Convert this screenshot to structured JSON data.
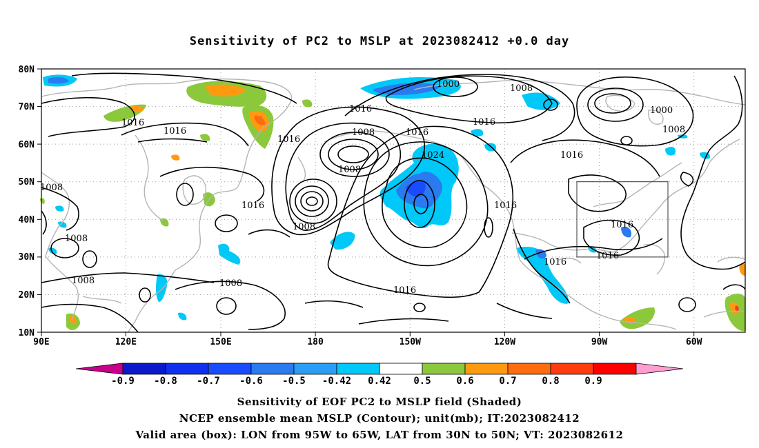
{
  "title": "Sensitivity of PC2 to MSLP at 2023082412 +0.0 day",
  "map": {
    "lon_ticks": [
      "90E",
      "120E",
      "150E",
      "180",
      "150W",
      "120W",
      "90W",
      "60W"
    ],
    "lat_ticks": [
      "80N",
      "70N",
      "60N",
      "50N",
      "40N",
      "30N",
      "20N",
      "10N"
    ],
    "extent": {
      "lon_west": "90E",
      "lon_east": "50W",
      "lat_south": "10N",
      "lat_north": "80N"
    },
    "contour_labels": [
      "1000",
      "1008",
      "1016",
      "1016",
      "1016",
      "1016",
      "1008",
      "1016",
      "1000",
      "1016",
      "1008",
      "1008",
      "1000",
      "1016",
      "1024",
      "1016",
      "1016",
      "1008",
      "1016",
      "1016",
      "1016",
      "1008",
      "1008",
      "1008",
      "1016"
    ],
    "valid_box": {
      "lon_from": "95W",
      "lon_to": "65W",
      "lat_from": "30N",
      "lat_to": "50N"
    }
  },
  "colorbar": {
    "labels": [
      "-0.9",
      "-0.8",
      "-0.7",
      "-0.6",
      "-0.5",
      "-0.42",
      "0.42",
      "0.5",
      "0.6",
      "0.7",
      "0.8",
      "0.9"
    ],
    "colors": [
      "#c8008c",
      "#0a1acb",
      "#1030f0",
      "#1a4cff",
      "#2a7af0",
      "#2a9ef5",
      "#00c8f8",
      "#ffffff",
      "#8cc83c",
      "#ff9a10",
      "#ff6c10",
      "#ff3c10",
      "#ff0000",
      "#ff9ed2"
    ]
  },
  "captions": {
    "line1": "Sensitivity of EOF PC2 to MSLP field (Shaded)",
    "line2": "NCEP ensemble mean MSLP (Contour); unit(mb); IT:2023082412",
    "line3": "Valid area (box): LON from 95W to 65W, LAT from 30N to 50N; VT: 2023082612"
  },
  "colors": {
    "contour": "#000000",
    "coast": "#b4b4b4",
    "grid": "#999999",
    "neg_shade": "#00c8f8",
    "neg_strong": "#2a7af0",
    "neg_core": "#1a4cff",
    "pos_shade": "#8cc83c",
    "pos_mid": "#ff9a10",
    "pos_core": "#ff6c10"
  }
}
